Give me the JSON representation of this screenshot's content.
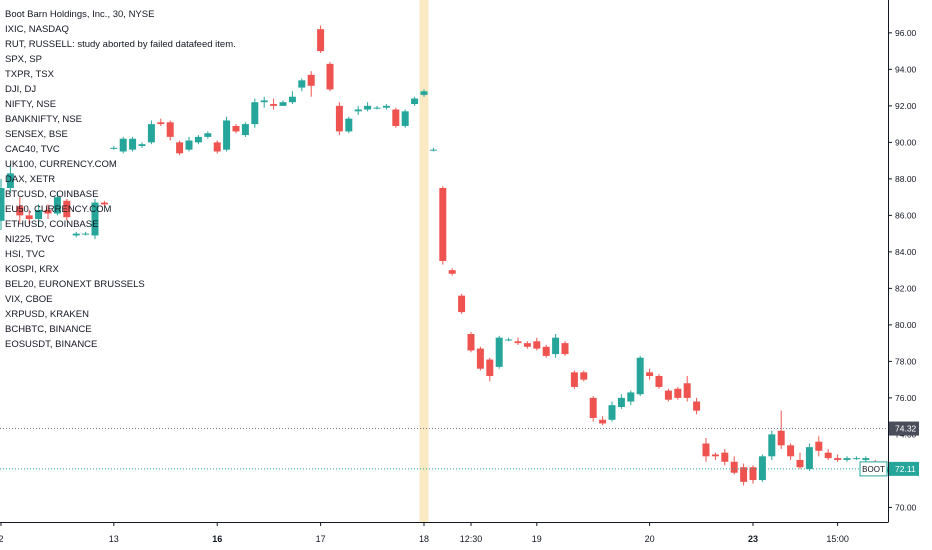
{
  "legend": {
    "title": "Boot Barn Holdings, Inc., 30, NYSE",
    "studies": [
      "IXIC, NASDAQ",
      "RUT, RUSSELL: study aborted by failed datafeed item.",
      "SPX, SP",
      "TXPR, TSX",
      "DJI, DJ",
      "NIFTY, NSE",
      "BANKNIFTY, NSE",
      "SENSEX, BSE",
      "CAC40, TVC",
      "UK100, CURRENCY.COM",
      "DAX, XETR",
      "BTCUSD, COINBASE",
      "EU50, CURRENCY.COM",
      "ETHUSD, COINBASE",
      "NI225, TVC",
      "HSI, TVC",
      "KOSPI, KRX",
      "BEL20, EURONEXT BRUSSELS",
      "VIX, CBOE",
      "XRPUSD, KRAKEN",
      "BCHBTC, BINANCE",
      "EOSUSDT, BINANCE"
    ]
  },
  "colors": {
    "up": "#26a69a",
    "down": "#ef5350",
    "session_highlight": "#fbe9c3",
    "grid": "#f0f3fa",
    "axis": "#131722",
    "price_label_bg": "#26a69a",
    "level_label_bg": "#4a4e5a"
  },
  "price_tags": {
    "symbol": "BOOT",
    "last_price": "72.11",
    "level_price": "74.32"
  },
  "chart_data": {
    "type": "candlestick",
    "title": "Boot Barn Holdings, Inc., 30, NYSE",
    "ylim": [
      69.2,
      97.8
    ],
    "y_ticks": [
      "96.00",
      "94.00",
      "92.00",
      "90.00",
      "88.00",
      "86.00",
      "84.00",
      "82.00",
      "80.00",
      "78.00",
      "76.00",
      "74.00",
      "72.00",
      "70.00"
    ],
    "x_ticks": [
      {
        "label": "2",
        "bar": 0,
        "bold": false
      },
      {
        "label": "13",
        "bar": 12,
        "bold": false
      },
      {
        "label": "16",
        "bar": 23,
        "bold": true
      },
      {
        "label": "17",
        "bar": 34,
        "bold": false
      },
      {
        "label": "18",
        "bar": 45,
        "bold": false
      },
      {
        "label": "12:30",
        "bar": 50,
        "bold": false
      },
      {
        "label": "19",
        "bar": 57,
        "bold": false
      },
      {
        "label": "20",
        "bar": 69,
        "bold": false
      },
      {
        "label": "23",
        "bar": 80,
        "bold": true
      },
      {
        "label": "15:00",
        "bar": 89,
        "bold": false
      }
    ],
    "highlight_bar": 45,
    "level_line": 74.32,
    "last_price": 72.11,
    "grid": false,
    "candles": [
      [
        85.7,
        88.0,
        85.2,
        87.5
      ],
      [
        87.5,
        88.8,
        87.2,
        88.3
      ],
      [
        86.5,
        87.0,
        85.6,
        86.0
      ],
      [
        86.0,
        86.3,
        85.5,
        85.8
      ],
      [
        85.8,
        86.6,
        85.4,
        86.3
      ],
      [
        86.3,
        86.6,
        85.8,
        86.1
      ],
      [
        86.1,
        87.3,
        86.0,
        87.0
      ],
      [
        86.8,
        86.9,
        85.7,
        85.9
      ],
      [
        84.9,
        85.1,
        84.8,
        85.0
      ],
      [
        85.0,
        85.1,
        84.9,
        85.0
      ],
      [
        84.9,
        86.9,
        84.7,
        86.7
      ],
      [
        86.7,
        86.8,
        86.5,
        86.6
      ],
      [
        89.7,
        89.8,
        89.6,
        89.7
      ],
      [
        89.5,
        90.3,
        89.4,
        90.2
      ],
      [
        89.6,
        90.3,
        89.5,
        90.2
      ],
      [
        89.8,
        90.0,
        89.7,
        89.9
      ],
      [
        90.0,
        91.2,
        89.9,
        91.0
      ],
      [
        91.1,
        91.3,
        90.9,
        91.0
      ],
      [
        91.1,
        91.2,
        90.1,
        90.3
      ],
      [
        90.0,
        90.1,
        89.3,
        89.4
      ],
      [
        89.6,
        90.3,
        89.5,
        90.1
      ],
      [
        90.0,
        90.4,
        89.9,
        90.3
      ],
      [
        90.3,
        90.6,
        90.2,
        90.5
      ],
      [
        90.0,
        90.1,
        89.4,
        89.5
      ],
      [
        89.6,
        91.4,
        89.5,
        91.2
      ],
      [
        90.9,
        91.0,
        90.5,
        90.6
      ],
      [
        90.4,
        91.1,
        90.3,
        91.0
      ],
      [
        91.0,
        92.4,
        90.8,
        92.2
      ],
      [
        92.2,
        92.5,
        91.9,
        92.3
      ],
      [
        92.1,
        92.4,
        91.8,
        92.0
      ],
      [
        92.0,
        92.3,
        92.0,
        92.2
      ],
      [
        92.2,
        92.8,
        92.1,
        92.5
      ],
      [
        93.0,
        93.5,
        92.8,
        93.4
      ],
      [
        93.7,
        93.9,
        92.5,
        93.1
      ],
      [
        96.2,
        96.4,
        94.9,
        95.0
      ],
      [
        94.3,
        94.4,
        92.8,
        92.9
      ],
      [
        92.0,
        92.2,
        90.4,
        90.6
      ],
      [
        90.6,
        91.4,
        90.5,
        91.3
      ],
      [
        91.7,
        92.0,
        91.5,
        91.8
      ],
      [
        91.8,
        92.2,
        91.7,
        92.0
      ],
      [
        91.9,
        92.0,
        91.8,
        91.9
      ],
      [
        91.9,
        92.1,
        91.8,
        92.0
      ],
      [
        91.8,
        91.9,
        90.8,
        90.9
      ],
      [
        90.9,
        91.8,
        90.8,
        91.7
      ],
      [
        92.1,
        92.5,
        92.0,
        92.4
      ],
      [
        92.6,
        92.9,
        92.5,
        92.8
      ],
      [
        89.6,
        89.7,
        89.5,
        89.6
      ],
      [
        87.5,
        87.6,
        83.3,
        83.5
      ],
      [
        83.0,
        83.1,
        82.7,
        82.8
      ],
      [
        81.6,
        81.7,
        80.6,
        80.7
      ],
      [
        79.5,
        79.6,
        78.5,
        78.6
      ],
      [
        78.7,
        78.8,
        77.5,
        77.6
      ],
      [
        78.1,
        78.2,
        76.9,
        77.2
      ],
      [
        77.7,
        79.4,
        77.6,
        79.3
      ],
      [
        79.2,
        79.3,
        79.1,
        79.2
      ],
      [
        79.1,
        79.3,
        78.9,
        79.0
      ],
      [
        79.0,
        79.1,
        78.7,
        78.8
      ],
      [
        79.1,
        79.3,
        78.6,
        78.7
      ],
      [
        78.8,
        78.9,
        78.2,
        78.3
      ],
      [
        78.4,
        79.5,
        78.2,
        79.3
      ],
      [
        79.0,
        79.1,
        78.3,
        78.4
      ],
      [
        77.4,
        77.5,
        76.5,
        76.6
      ],
      [
        77.4,
        77.5,
        76.9,
        77.0
      ],
      [
        76.0,
        76.1,
        74.7,
        74.9
      ],
      [
        74.8,
        75.0,
        74.5,
        74.6
      ],
      [
        74.8,
        75.8,
        74.7,
        75.6
      ],
      [
        75.5,
        76.2,
        75.4,
        76.0
      ],
      [
        75.8,
        76.4,
        75.6,
        76.3
      ],
      [
        76.2,
        78.3,
        76.1,
        78.2
      ],
      [
        77.4,
        77.6,
        77.0,
        77.2
      ],
      [
        77.2,
        77.3,
        76.5,
        76.6
      ],
      [
        76.4,
        76.5,
        75.8,
        75.9
      ],
      [
        76.5,
        76.6,
        75.9,
        76.0
      ],
      [
        76.8,
        77.2,
        75.8,
        76.0
      ],
      [
        75.8,
        76.0,
        75.1,
        75.3
      ],
      [
        73.5,
        73.8,
        72.5,
        72.8
      ],
      [
        72.9,
        73.0,
        72.6,
        72.8
      ],
      [
        73.0,
        73.2,
        72.3,
        72.5
      ],
      [
        72.5,
        72.8,
        71.8,
        71.9
      ],
      [
        72.2,
        72.4,
        71.2,
        71.4
      ],
      [
        72.2,
        72.3,
        71.3,
        71.5
      ],
      [
        71.5,
        72.9,
        71.4,
        72.8
      ],
      [
        72.8,
        74.2,
        72.6,
        74.0
      ],
      [
        74.2,
        75.3,
        73.2,
        73.4
      ],
      [
        73.4,
        73.5,
        72.6,
        72.8
      ],
      [
        72.6,
        73.0,
        72.1,
        72.2
      ],
      [
        72.1,
        73.5,
        72.0,
        73.3
      ],
      [
        73.6,
        73.9,
        72.8,
        73.1
      ],
      [
        73.0,
        73.2,
        72.6,
        72.7
      ],
      [
        72.7,
        72.9,
        72.5,
        72.6
      ],
      [
        72.6,
        72.8,
        72.5,
        72.7
      ],
      [
        72.7,
        72.8,
        72.6,
        72.7
      ],
      [
        72.6,
        72.8,
        72.4,
        72.7
      ],
      [
        72.5,
        72.6,
        71.8,
        71.9
      ],
      [
        71.9,
        72.3,
        71.8,
        72.2
      ]
    ]
  }
}
